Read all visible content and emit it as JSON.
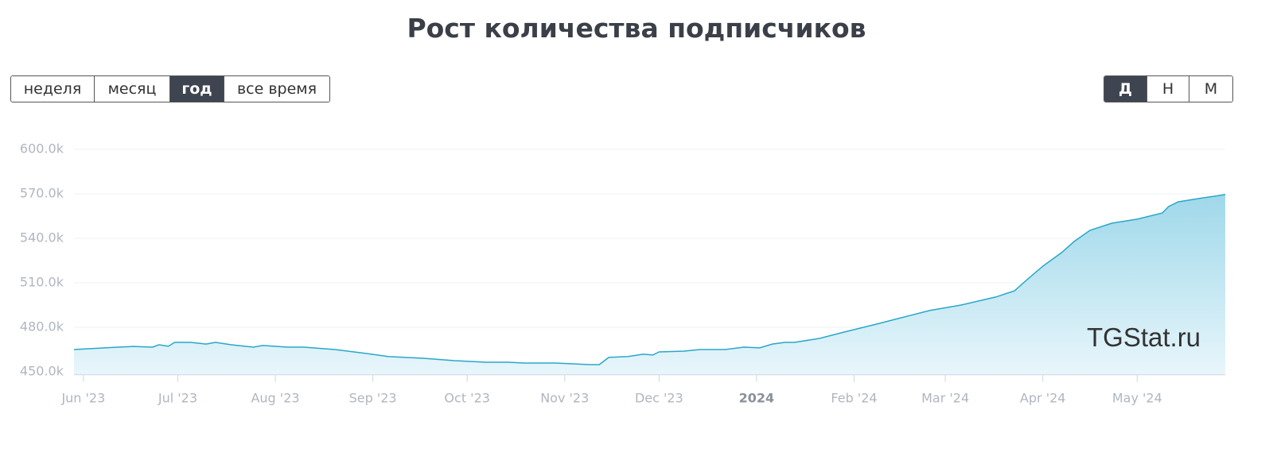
{
  "title": "Рост количества подписчиков",
  "period_buttons": [
    {
      "label": "неделя",
      "active": false
    },
    {
      "label": "месяц",
      "active": false
    },
    {
      "label": "год",
      "active": true
    },
    {
      "label": "все время",
      "active": false
    }
  ],
  "scale_buttons": [
    {
      "label": "Д",
      "active": true
    },
    {
      "label": "Н",
      "active": false
    },
    {
      "label": "М",
      "active": false
    }
  ],
  "watermark": "TGStat.ru",
  "chart_data": {
    "type": "area",
    "color": "#2aa7c9",
    "grid": true,
    "x": [
      -3,
      11,
      16,
      22,
      24,
      27,
      29,
      34,
      39,
      42,
      47,
      54,
      57,
      65,
      70,
      80,
      90,
      97,
      108,
      118,
      128,
      135,
      140,
      150,
      161,
      164,
      167,
      173,
      178,
      181,
      183,
      191,
      196,
      204,
      210,
      215,
      219,
      223,
      226,
      234,
      242,
      252,
      259,
      269,
      279,
      290,
      296,
      300,
      305,
      311,
      315,
      320,
      327,
      335,
      343,
      345,
      348,
      353,
      363
    ],
    "series": [
      {
        "name": "подписчики",
        "values": [
          465000,
          466600,
          467100,
          466600,
          468200,
          467200,
          469800,
          469800,
          468700,
          469800,
          468200,
          466600,
          467700,
          466600,
          466600,
          465000,
          462300,
          460200,
          459100,
          457500,
          456400,
          456400,
          455900,
          455900,
          454800,
          454800,
          459700,
          460200,
          461800,
          461300,
          463400,
          463900,
          465000,
          465000,
          466600,
          466100,
          468700,
          469800,
          469800,
          472500,
          476800,
          482100,
          485900,
          491300,
          495000,
          500400,
          504600,
          512100,
          521200,
          530400,
          537900,
          545400,
          550200,
          552900,
          557100,
          561400,
          564600,
          566300,
          569500
        ]
      }
    ],
    "xlim": [
      -3,
      363
    ],
    "xticks": [
      {
        "value": 0,
        "label": "Jun '23"
      },
      {
        "value": 30,
        "label": "Jul '23"
      },
      {
        "value": 61,
        "label": "Aug '23"
      },
      {
        "value": 92,
        "label": "Sep '23"
      },
      {
        "value": 122,
        "label": "Oct '23"
      },
      {
        "value": 153,
        "label": "Nov '23"
      },
      {
        "value": 183,
        "label": "Dec '23"
      },
      {
        "value": 214,
        "label": "2024"
      },
      {
        "value": 245,
        "label": "Feb '24"
      },
      {
        "value": 274,
        "label": "Mar '24"
      },
      {
        "value": 305,
        "label": "Apr '24"
      },
      {
        "value": 335,
        "label": "May '24"
      }
    ],
    "ylim": [
      448000,
      600000
    ],
    "yticks": [
      {
        "value": 450000,
        "label": "450.0k"
      },
      {
        "value": 480000,
        "label": "480.0k"
      },
      {
        "value": 510000,
        "label": "510.0k"
      },
      {
        "value": 540000,
        "label": "540.0k"
      },
      {
        "value": 570000,
        "label": "570.0k"
      },
      {
        "value": 600000,
        "label": "600.0k"
      }
    ]
  }
}
